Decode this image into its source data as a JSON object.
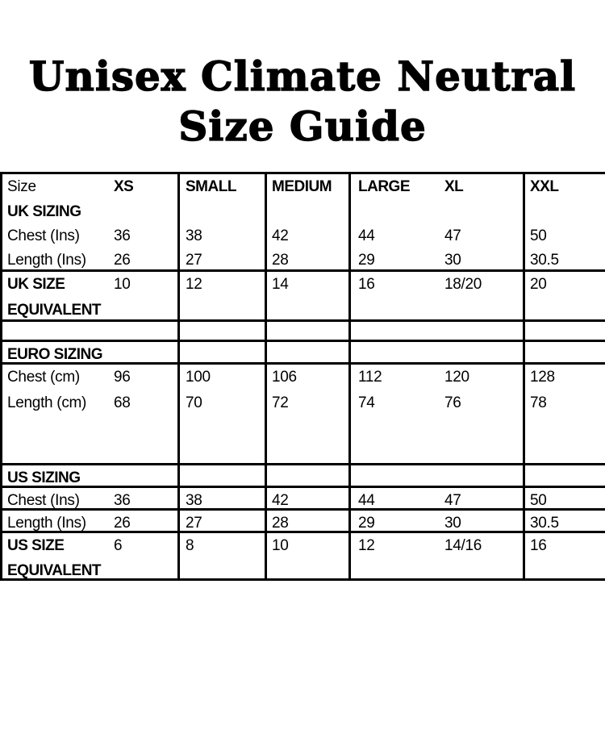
{
  "title": {
    "line1": "Unisex Climate Neutral",
    "line2": "Size Guide"
  },
  "colors": {
    "text": "#000000",
    "background": "#ffffff",
    "border": "#000000"
  },
  "table": {
    "header": {
      "size_label": "Size",
      "xs": "XS",
      "small": "SMALL",
      "medium": "MEDIUM",
      "large": "LARGE",
      "xl": "XL",
      "xxl": "XXL"
    },
    "uk": {
      "section_label": "UK SIZING",
      "chest": {
        "label": "Chest (Ins)",
        "values": [
          "36",
          "38",
          "42",
          "44",
          "47",
          "50"
        ]
      },
      "length": {
        "label": "Length (Ins)",
        "values": [
          "26",
          "27",
          "28",
          "29",
          "30",
          "30.5"
        ]
      },
      "equivalent": {
        "label_line1": "UK SIZE",
        "label_line2": "EQUIVALENT",
        "values": [
          "10",
          "12",
          "14",
          "16",
          "18/20",
          "20"
        ]
      }
    },
    "euro": {
      "section_label": "EURO SIZING",
      "chest": {
        "label": "Chest (cm)",
        "values": [
          "96",
          "100",
          "106",
          "112",
          "120",
          "128"
        ]
      },
      "length": {
        "label": "Length (cm)",
        "values": [
          "68",
          "70",
          "72",
          "74",
          "76",
          "78"
        ]
      }
    },
    "us": {
      "section_label": "US SIZING",
      "chest": {
        "label": "Chest (Ins)",
        "values": [
          "36",
          "38",
          "42",
          "44",
          "47",
          "50"
        ]
      },
      "length": {
        "label": "Length (Ins)",
        "values": [
          "26",
          "27",
          "28",
          "29",
          "30",
          "30.5"
        ]
      },
      "equivalent": {
        "label_line1": "US SIZE",
        "label_line2": "EQUIVALENT",
        "values": [
          "6",
          "8",
          "10",
          "12",
          "14/16",
          "16"
        ]
      }
    }
  }
}
